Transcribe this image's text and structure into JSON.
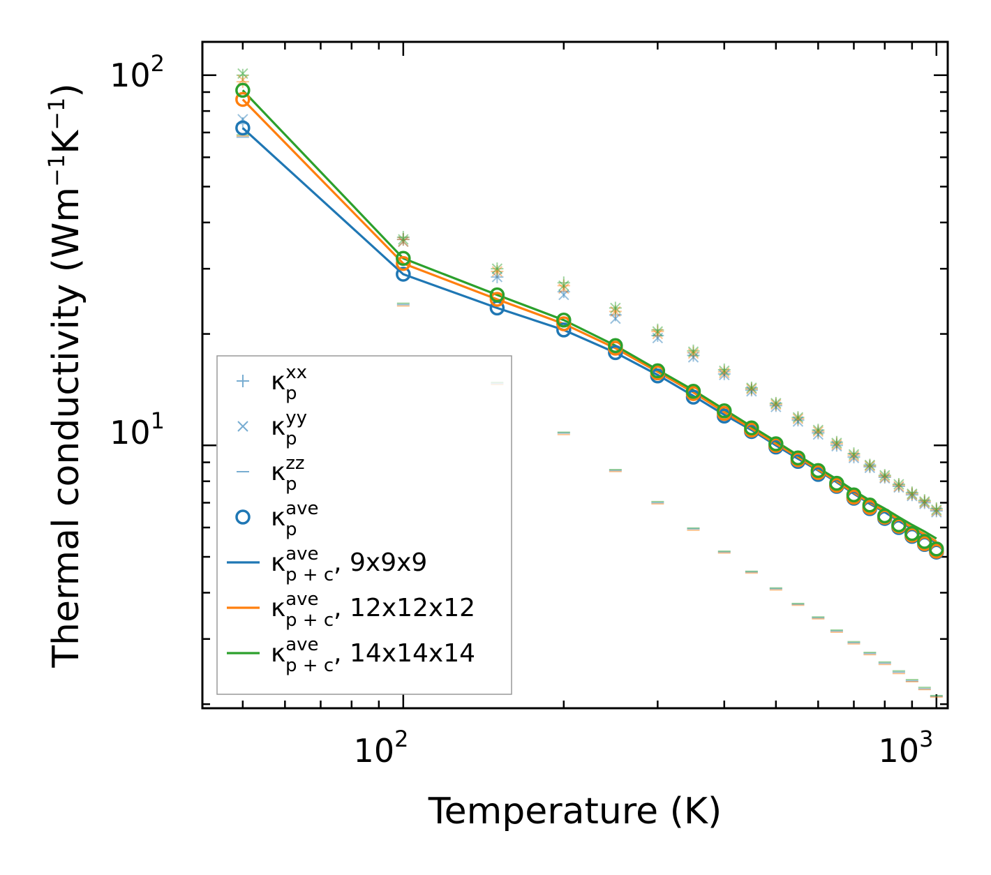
{
  "chart_data": {
    "type": "scatter",
    "xscale": "log",
    "yscale": "log",
    "xlabel": "Temperature (K)",
    "ylabel_main": "Thermal conductivity (Wm",
    "ylabel_exp1": "−1",
    "ylabel_mid": "K",
    "ylabel_exp2": "−1",
    "ylabel_end": ")",
    "xlim": [
      42,
      1050
    ],
    "ylim": [
      1.95,
      123
    ],
    "x_ticks": [
      {
        "base": "10",
        "exp": "2",
        "value": 100
      },
      {
        "base": "10",
        "exp": "3",
        "value": 1000
      }
    ],
    "y_ticks": [
      {
        "base": "10",
        "exp": "1",
        "value": 10
      },
      {
        "base": "10",
        "exp": "2",
        "value": 100
      }
    ],
    "x": [
      50,
      100,
      150,
      200,
      250,
      300,
      350,
      400,
      450,
      500,
      550,
      600,
      650,
      700,
      750,
      800,
      850,
      900,
      950,
      1000
    ],
    "colors": {
      "blue": "#1f77b4",
      "orange": "#ff7f0e",
      "green": "#2ca02c"
    },
    "markers": [
      {
        "kind": "plus",
        "color": "#1f77b4",
        "values": [
          74,
          36,
          28.5,
          26,
          22.5,
          19.8,
          17.5,
          15.6,
          14.1,
          12.8,
          11.7,
          10.8,
          10.0,
          9.3,
          8.75,
          8.2,
          7.75,
          7.35,
          7.0,
          6.65
        ]
      },
      {
        "kind": "plus",
        "color": "#ff7f0e",
        "values": [
          96,
          36,
          29.5,
          27,
          23,
          20.3,
          17.8,
          15.8,
          14.2,
          12.9,
          11.8,
          10.9,
          10.1,
          9.4,
          8.8,
          8.25,
          7.8,
          7.4,
          7.05,
          6.7
        ]
      },
      {
        "kind": "plus",
        "color": "#2ca02c",
        "values": [
          100,
          36.5,
          30,
          27.5,
          23.5,
          20.5,
          18.0,
          16.0,
          14.3,
          13.0,
          11.9,
          11.0,
          10.2,
          9.5,
          8.85,
          8.3,
          7.85,
          7.45,
          7.1,
          6.75
        ]
      },
      {
        "kind": "cross",
        "color": "#1f77b4",
        "values": [
          76,
          35.5,
          28.5,
          25.5,
          22,
          19.5,
          17.3,
          15.5,
          14.0,
          12.7,
          11.6,
          10.7,
          9.95,
          9.25,
          8.7,
          8.15,
          7.7,
          7.3,
          6.95,
          6.6
        ]
      },
      {
        "kind": "cross",
        "color": "#ff7f0e",
        "values": [
          97,
          35.5,
          29.5,
          26.5,
          23,
          20,
          17.7,
          15.7,
          14.2,
          12.9,
          11.8,
          10.9,
          10.05,
          9.35,
          8.8,
          8.2,
          7.75,
          7.35,
          7.0,
          6.65
        ]
      },
      {
        "kind": "cross",
        "color": "#2ca02c",
        "values": [
          101,
          36,
          30,
          27,
          23.5,
          20.3,
          17.9,
          15.9,
          14.3,
          13.0,
          11.9,
          11.0,
          10.15,
          9.45,
          8.85,
          8.3,
          7.85,
          7.4,
          7.05,
          6.7
        ]
      },
      {
        "kind": "dash",
        "color": "#1f77b4",
        "values": [
          68,
          24,
          14.7,
          10.8,
          8.55,
          7.0,
          5.95,
          5.15,
          4.55,
          4.1,
          3.72,
          3.42,
          3.15,
          2.93,
          2.74,
          2.58,
          2.44,
          2.31,
          2.2,
          2.1
        ]
      },
      {
        "kind": "dash",
        "color": "#ff7f0e",
        "values": [
          68.5,
          23.8,
          14.6,
          10.7,
          8.5,
          6.95,
          5.9,
          5.12,
          4.52,
          4.07,
          3.7,
          3.4,
          3.13,
          2.91,
          2.72,
          2.56,
          2.42,
          2.3,
          2.19,
          2.09
        ]
      },
      {
        "kind": "dash",
        "color": "#2ca02c",
        "values": [
          69,
          24.2,
          14.8,
          10.85,
          8.6,
          7.05,
          5.98,
          5.18,
          4.57,
          4.12,
          3.74,
          3.44,
          3.17,
          2.95,
          2.76,
          2.6,
          2.46,
          2.33,
          2.22,
          2.11
        ]
      },
      {
        "kind": "circle",
        "color": "#1f77b4",
        "values": [
          72,
          29,
          23.5,
          20.5,
          17.8,
          15.4,
          13.5,
          12.0,
          10.9,
          9.9,
          9.05,
          8.35,
          7.75,
          7.2,
          6.75,
          6.35,
          6.0,
          5.68,
          5.4,
          5.15
        ]
      },
      {
        "kind": "circle",
        "color": "#ff7f0e",
        "values": [
          86,
          31,
          24.8,
          21.3,
          18.3,
          15.7,
          13.8,
          12.2,
          11.0,
          10.0,
          9.15,
          8.45,
          7.8,
          7.25,
          6.8,
          6.4,
          6.05,
          5.72,
          5.43,
          5.18
        ]
      },
      {
        "kind": "circle",
        "color": "#2ca02c",
        "values": [
          91,
          32,
          25.5,
          21.8,
          18.6,
          15.9,
          14.0,
          12.4,
          11.15,
          10.1,
          9.25,
          8.55,
          7.9,
          7.35,
          6.9,
          6.45,
          6.1,
          5.78,
          5.5,
          5.25
        ]
      }
    ],
    "series": [
      {
        "name": "9x9x9",
        "color": "#1f77b4",
        "values": [
          72,
          29,
          23.5,
          20.5,
          17.8,
          15.5,
          13.6,
          12.1,
          11.0,
          10.0,
          9.2,
          8.55,
          7.95,
          7.4,
          6.95,
          6.6,
          6.25,
          5.95,
          5.7,
          5.45
        ]
      },
      {
        "name": "12x12x12",
        "color": "#ff7f0e",
        "values": [
          86,
          31,
          24.8,
          21.3,
          18.3,
          15.8,
          13.9,
          12.3,
          11.1,
          10.1,
          9.3,
          8.6,
          8.0,
          7.45,
          7.0,
          6.65,
          6.3,
          6.0,
          5.75,
          5.5
        ]
      },
      {
        "name": "14x14x14",
        "color": "#2ca02c",
        "values": [
          91,
          32,
          25.5,
          21.8,
          18.6,
          16.0,
          14.1,
          12.5,
          11.25,
          10.25,
          9.4,
          8.7,
          8.1,
          7.55,
          7.1,
          6.75,
          6.4,
          6.1,
          5.85,
          5.6
        ]
      }
    ],
    "legend": {
      "placement": "lower-left",
      "entries": [
        {
          "kind": "plus",
          "color": "#1f77b4",
          "base": "κ",
          "sup": "xx",
          "sub": "p",
          "suffix": ""
        },
        {
          "kind": "cross",
          "color": "#1f77b4",
          "base": "κ",
          "sup": "yy",
          "sub": "p",
          "suffix": ""
        },
        {
          "kind": "dash",
          "color": "#1f77b4",
          "base": "κ",
          "sup": "zz",
          "sub": "p",
          "suffix": ""
        },
        {
          "kind": "circle",
          "color": "#1f77b4",
          "base": "κ",
          "sup": "ave",
          "sub": "p",
          "suffix": ""
        },
        {
          "kind": "line",
          "color": "#1f77b4",
          "base": "κ",
          "sup": "ave",
          "sub": "p + c",
          "suffix": ", 9x9x9"
        },
        {
          "kind": "line",
          "color": "#ff7f0e",
          "base": "κ",
          "sup": "ave",
          "sub": "p + c",
          "suffix": ", 12x12x12"
        },
        {
          "kind": "line",
          "color": "#2ca02c",
          "base": "κ",
          "sup": "ave",
          "sub": "p + c",
          "suffix": ", 14x14x14"
        }
      ]
    }
  }
}
